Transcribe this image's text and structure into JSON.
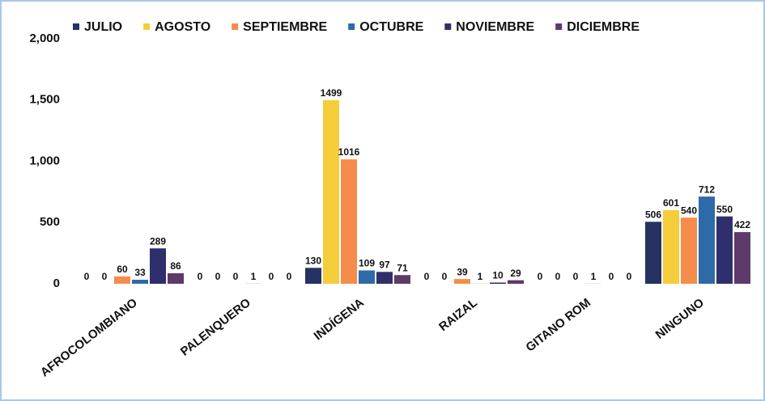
{
  "chart_data": {
    "type": "bar",
    "categories": [
      "AFROCOLOMBIANO",
      "PALENQUERO",
      "INDÍGENA",
      "RAIZAL",
      "GITANO ROM",
      "NINGUNO"
    ],
    "series": [
      {
        "name": "JULIO",
        "color": "#253262",
        "values": [
          0,
          0,
          130,
          0,
          0,
          506
        ]
      },
      {
        "name": "AGOSTO",
        "color": "#f5cd3a",
        "values": [
          0,
          0,
          1499,
          0,
          0,
          601
        ]
      },
      {
        "name": "SEPTIEMBRE",
        "color": "#f68c4b",
        "values": [
          60,
          0,
          1016,
          39,
          0,
          540
        ]
      },
      {
        "name": "OCTUBRE",
        "color": "#2e6aa8",
        "values": [
          33,
          1,
          109,
          1,
          1,
          712
        ]
      },
      {
        "name": "NOVIEMBRE",
        "color": "#2f2f6e",
        "values": [
          289,
          0,
          97,
          10,
          0,
          550
        ]
      },
      {
        "name": "DICIEMBRE",
        "color": "#5e3a6a",
        "values": [
          86,
          0,
          71,
          29,
          0,
          422
        ]
      }
    ],
    "ylim": [
      0,
      2000
    ],
    "yticks": [
      0,
      500,
      {
        "value": 1000,
        "label": "1,000"
      },
      {
        "value": 1500,
        "label": "1,500"
      },
      {
        "value": 2000,
        "label": "2,000"
      }
    ],
    "grid": false,
    "legend": "top"
  }
}
